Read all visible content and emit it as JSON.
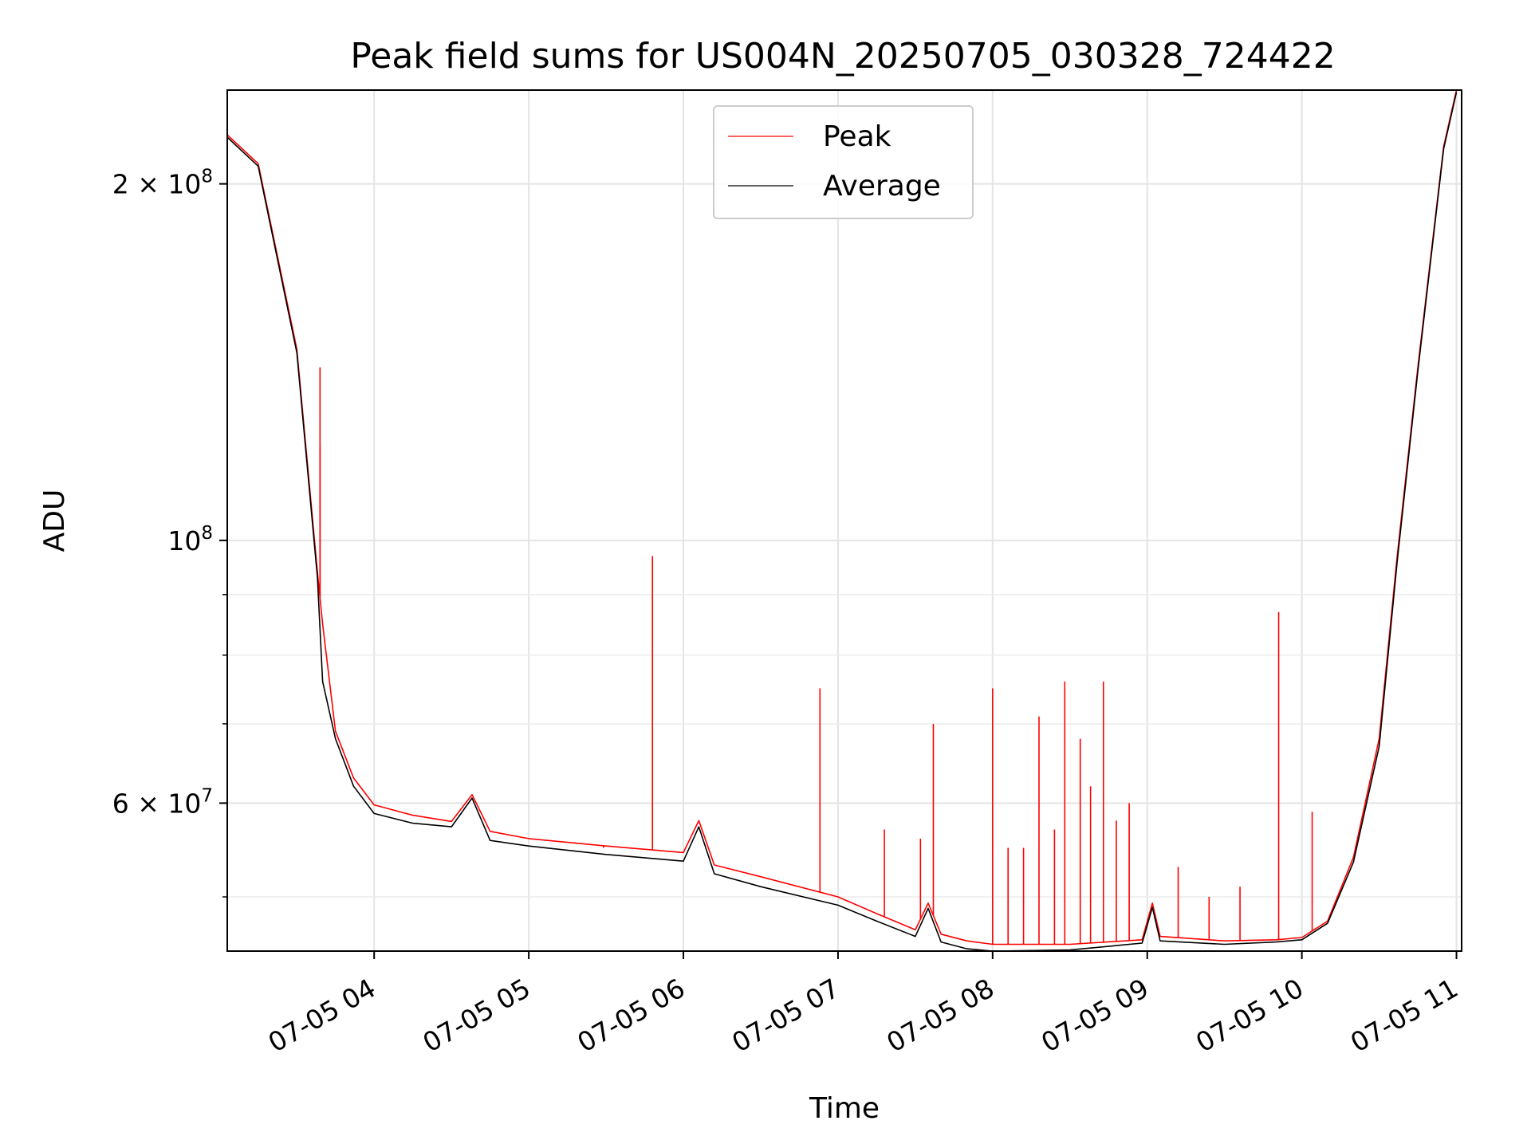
{
  "chart_data": {
    "type": "line",
    "title": "Peak field sums for US004N_20250705_030328_724422",
    "xlabel": "Time",
    "ylabel": "ADU",
    "x_scale": "time",
    "y_scale": "log",
    "xlim": [
      "2025-07-05 03:03",
      "2025-07-05 11:02"
    ],
    "ylim": [
      45000000,
      240000000
    ],
    "grid": true,
    "legend_position": "top-center",
    "x_ticks": [
      "07-05 04",
      "07-05 05",
      "07-05 06",
      "07-05 07",
      "07-05 08",
      "07-05 09",
      "07-05 10",
      "07-05 11"
    ],
    "y_major_ticks": [
      {
        "value": 200000000,
        "base": "2 × 10",
        "exp": "8"
      },
      {
        "value": 100000000,
        "base": "10",
        "exp": "8"
      },
      {
        "value": 60000000,
        "base": "6 × 10",
        "exp": "7"
      }
    ],
    "y_minor_ticks": [
      50000000,
      70000000,
      80000000,
      90000000
    ],
    "series": [
      {
        "name": "Peak",
        "color": "#ff0000",
        "x": [
          "2025-07-05 03:03",
          "2025-07-05 03:15",
          "2025-07-05 03:30",
          "2025-07-05 03:38",
          "2025-07-05 03:40",
          "2025-07-05 03:45",
          "2025-07-05 03:52",
          "2025-07-05 04:00",
          "2025-07-05 04:15",
          "2025-07-05 04:30",
          "2025-07-05 04:38",
          "2025-07-05 04:45",
          "2025-07-05 05:00",
          "2025-07-05 05:30",
          "2025-07-05 06:00",
          "2025-07-05 06:06",
          "2025-07-05 06:12",
          "2025-07-05 06:30",
          "2025-07-05 07:00",
          "2025-07-05 07:15",
          "2025-07-05 07:30",
          "2025-07-05 07:35",
          "2025-07-05 07:40",
          "2025-07-05 07:50",
          "2025-07-05 08:00",
          "2025-07-05 08:30",
          "2025-07-05 08:58",
          "2025-07-05 09:02",
          "2025-07-05 09:05",
          "2025-07-05 09:30",
          "2025-07-05 09:50",
          "2025-07-05 10:00",
          "2025-07-05 10:10",
          "2025-07-05 10:20",
          "2025-07-05 10:30",
          "2025-07-05 10:37",
          "2025-07-05 10:45",
          "2025-07-05 10:55",
          "2025-07-05 11:00"
        ],
        "y": [
          220000000,
          208000000,
          145000000,
          94000000,
          85000000,
          69000000,
          63000000,
          59800000,
          58600000,
          57900000,
          61000000,
          56800000,
          56000000,
          55200000,
          54500000,
          58000000,
          53200000,
          52000000,
          50000000,
          48400000,
          46900000,
          49400000,
          46500000,
          45900000,
          45600000,
          45600000,
          46000000,
          49400000,
          46300000,
          45900000,
          46000000,
          46200000,
          47700000,
          54000000,
          68000000,
          97000000,
          140000000,
          215000000,
          240000000
        ]
      },
      {
        "name": "Average",
        "color": "#000000",
        "x": [
          "2025-07-05 03:03",
          "2025-07-05 03:15",
          "2025-07-05 03:30",
          "2025-07-05 03:38",
          "2025-07-05 03:40",
          "2025-07-05 03:45",
          "2025-07-05 03:52",
          "2025-07-05 04:00",
          "2025-07-05 04:15",
          "2025-07-05 04:30",
          "2025-07-05 04:38",
          "2025-07-05 04:45",
          "2025-07-05 05:00",
          "2025-07-05 05:30",
          "2025-07-05 06:00",
          "2025-07-05 06:06",
          "2025-07-05 06:12",
          "2025-07-05 06:30",
          "2025-07-05 07:00",
          "2025-07-05 07:15",
          "2025-07-05 07:30",
          "2025-07-05 07:35",
          "2025-07-05 07:40",
          "2025-07-05 07:50",
          "2025-07-05 08:00",
          "2025-07-05 08:30",
          "2025-07-05 08:58",
          "2025-07-05 09:02",
          "2025-07-05 09:05",
          "2025-07-05 09:30",
          "2025-07-05 09:50",
          "2025-07-05 10:00",
          "2025-07-05 10:10",
          "2025-07-05 10:20",
          "2025-07-05 10:30",
          "2025-07-05 10:37",
          "2025-07-05 10:45",
          "2025-07-05 10:55",
          "2025-07-05 11:00"
        ],
        "y": [
          219000000,
          207000000,
          144000000,
          93000000,
          76000000,
          68000000,
          62000000,
          58800000,
          57700000,
          57300000,
          60600000,
          55800000,
          55200000,
          54300000,
          53600000,
          57300000,
          52300000,
          51000000,
          49200000,
          47700000,
          46300000,
          48900000,
          45800000,
          45200000,
          45000000,
          45100000,
          45700000,
          49000000,
          45900000,
          45600000,
          45800000,
          46000000,
          47500000,
          53500000,
          67000000,
          96000000,
          139000000,
          214000000,
          239000000
        ]
      }
    ],
    "peak_spikes": [
      {
        "x": "2025-07-05 03:39",
        "y": 140000000
      },
      {
        "x": "2025-07-05 03:39",
        "y": 120000000
      },
      {
        "x": "2025-07-05 05:29",
        "y": 55000000
      },
      {
        "x": "2025-07-05 05:48",
        "y": 97000000
      },
      {
        "x": "2025-07-05 06:53",
        "y": 75000000
      },
      {
        "x": "2025-07-05 07:18",
        "y": 57000000
      },
      {
        "x": "2025-07-05 07:32",
        "y": 56000000
      },
      {
        "x": "2025-07-05 07:37",
        "y": 70000000
      },
      {
        "x": "2025-07-05 08:00",
        "y": 75000000
      },
      {
        "x": "2025-07-05 08:06",
        "y": 55000000
      },
      {
        "x": "2025-07-05 08:12",
        "y": 55000000
      },
      {
        "x": "2025-07-05 08:18",
        "y": 71000000
      },
      {
        "x": "2025-07-05 08:24",
        "y": 57000000
      },
      {
        "x": "2025-07-05 08:28",
        "y": 76000000
      },
      {
        "x": "2025-07-05 08:34",
        "y": 68000000
      },
      {
        "x": "2025-07-05 08:38",
        "y": 62000000
      },
      {
        "x": "2025-07-05 08:43",
        "y": 76000000
      },
      {
        "x": "2025-07-05 08:48",
        "y": 58000000
      },
      {
        "x": "2025-07-05 08:53",
        "y": 60000000
      },
      {
        "x": "2025-07-05 09:12",
        "y": 53000000
      },
      {
        "x": "2025-07-05 09:24",
        "y": 50000000
      },
      {
        "x": "2025-07-05 09:36",
        "y": 51000000
      },
      {
        "x": "2025-07-05 09:51",
        "y": 87000000
      },
      {
        "x": "2025-07-05 10:04",
        "y": 59000000
      }
    ]
  }
}
